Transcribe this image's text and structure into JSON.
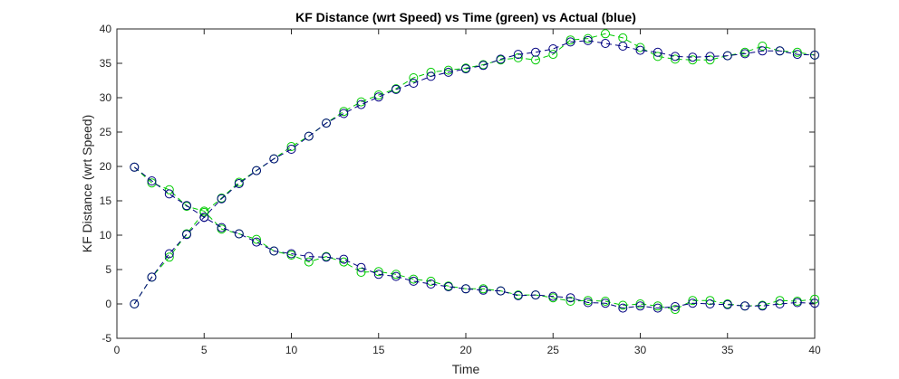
{
  "chart_data": {
    "type": "line",
    "title": "KF Distance (wrt Speed) vs Time (green) vs Actual (blue)",
    "xlabel": "Time",
    "ylabel": "KF Distance (wrt Speed)",
    "xlim": [
      0,
      40
    ],
    "ylim": [
      -5,
      40
    ],
    "xticks": [
      "0",
      "5",
      "10",
      "15",
      "20",
      "25",
      "30",
      "35",
      "40"
    ],
    "yticks": [
      "-5",
      "0",
      "5",
      "10",
      "15",
      "20",
      "25",
      "30",
      "35",
      "40"
    ],
    "grid": false,
    "legend": "none",
    "x": [
      1,
      2,
      3,
      4,
      5,
      6,
      7,
      8,
      9,
      10,
      11,
      12,
      13,
      14,
      15,
      16,
      17,
      18,
      19,
      20,
      21,
      22,
      23,
      24,
      25,
      26,
      27,
      28,
      29,
      30,
      31,
      32,
      33,
      34,
      35,
      36,
      37,
      38,
      39,
      40
    ],
    "series": [
      {
        "color": "#00cc00",
        "values": [
          0.0,
          3.9,
          6.8,
          10.2,
          13.3,
          15.4,
          17.7,
          19.4,
          21.1,
          22.9,
          24.4,
          26.3,
          28.0,
          29.4,
          30.4,
          31.3,
          32.9,
          33.7,
          34.0,
          34.3,
          34.8,
          35.5,
          35.8,
          35.5,
          36.3,
          38.4,
          38.6,
          39.3,
          38.7,
          37.3,
          36.0,
          35.6,
          35.5,
          35.5,
          36.1,
          36.6,
          37.5,
          36.8,
          36.6,
          36.2
        ]
      },
      {
        "color": "#000080",
        "values": [
          0.0,
          3.9,
          7.3,
          10.1,
          12.6,
          15.3,
          17.5,
          19.4,
          21.1,
          22.5,
          24.4,
          26.3,
          27.7,
          29.0,
          30.1,
          31.2,
          32.1,
          33.1,
          33.7,
          34.2,
          34.7,
          35.6,
          36.3,
          36.6,
          37.1,
          38.1,
          38.3,
          37.9,
          37.5,
          36.9,
          36.6,
          36.0,
          35.9,
          36.0,
          36.1,
          36.4,
          36.8,
          36.8,
          36.3,
          36.2
        ]
      },
      {
        "color": "#00cc00",
        "values": [
          19.9,
          17.6,
          16.6,
          14.2,
          13.5,
          10.9,
          10.2,
          9.4,
          7.7,
          7.1,
          6.1,
          6.9,
          6.1,
          4.6,
          4.7,
          4.3,
          3.6,
          3.3,
          2.6,
          2.2,
          2.2,
          1.9,
          1.3,
          1.3,
          0.9,
          0.4,
          0.5,
          0.4,
          -0.2,
          0.0,
          -0.3,
          -0.8,
          0.5,
          0.5,
          0.0,
          -0.3,
          -0.2,
          0.5,
          0.4,
          0.7
        ]
      },
      {
        "color": "#000080",
        "values": [
          19.9,
          17.9,
          16.0,
          14.3,
          12.6,
          11.1,
          10.2,
          9.0,
          7.7,
          7.3,
          6.9,
          6.8,
          6.5,
          5.3,
          4.3,
          4.0,
          3.3,
          2.9,
          2.5,
          2.2,
          2.0,
          1.9,
          1.2,
          1.3,
          1.1,
          0.9,
          0.2,
          0.1,
          -0.6,
          -0.3,
          -0.6,
          -0.4,
          0.1,
          0.0,
          -0.1,
          -0.3,
          -0.3,
          0.0,
          0.2,
          0.1
        ]
      }
    ]
  }
}
